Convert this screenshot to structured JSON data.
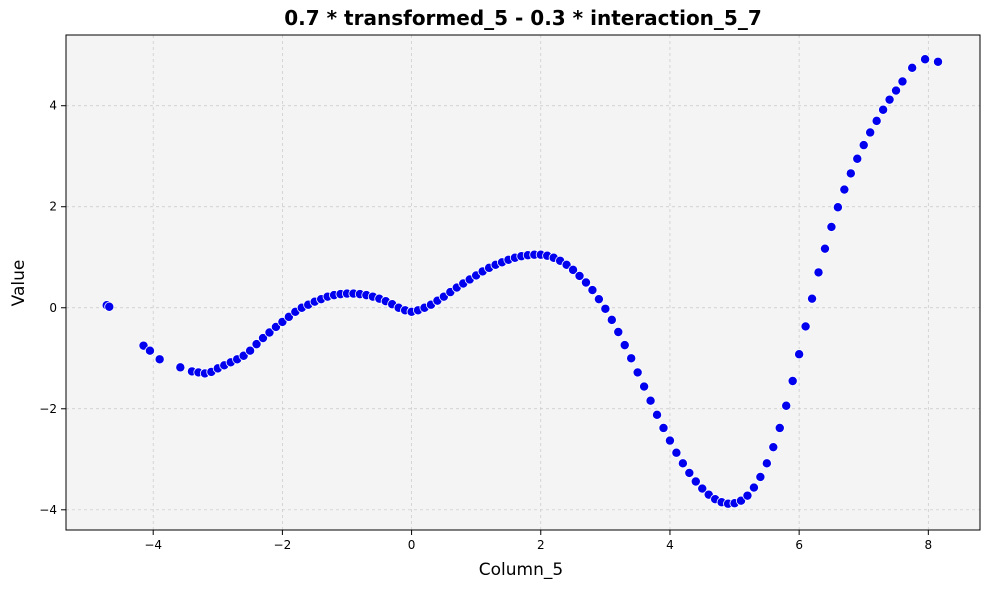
{
  "chart_data": {
    "type": "scatter",
    "title": "0.7 * transformed_5 - 0.3 * interaction_5_7",
    "xlabel": "Column_5",
    "ylabel": "Value",
    "xlim": [
      -5.35,
      8.8
    ],
    "ylim": [
      -4.4,
      5.4
    ],
    "xticks": [
      -4,
      -2,
      0,
      2,
      4,
      6,
      8
    ],
    "yticks": [
      -4,
      -2,
      0,
      2,
      4
    ],
    "grid": true,
    "legend": "none",
    "colors": {
      "point_fill": "#0000ee",
      "point_edge": "#ffffff",
      "plot_background": "#f4f4f4",
      "grid": "#c8c8c8"
    },
    "series": [
      {
        "x": [
          -4.72,
          -4.68,
          -4.15,
          -4.05,
          -3.9,
          -3.58,
          -3.4,
          -3.3,
          -3.2,
          -3.1,
          -3.0,
          -2.9,
          -2.8,
          -2.7,
          -2.6,
          -2.5,
          -2.4,
          -2.3,
          -2.2,
          -2.1,
          -2.0,
          -1.9,
          -1.8,
          -1.7,
          -1.6,
          -1.5,
          -1.4,
          -1.3,
          -1.2,
          -1.1,
          -1.0,
          -0.9,
          -0.8,
          -0.7,
          -0.6,
          -0.5,
          -0.4,
          -0.3,
          -0.2,
          -0.1,
          0.0,
          0.1,
          0.2,
          0.3,
          0.4,
          0.5,
          0.6,
          0.7,
          0.8,
          0.9,
          1.0,
          1.1,
          1.2,
          1.3,
          1.4,
          1.5,
          1.6,
          1.7,
          1.8,
          1.9,
          2.0,
          2.1,
          2.2,
          2.3,
          2.4,
          2.5,
          2.6,
          2.7,
          2.8,
          2.9,
          3.0,
          3.1,
          3.2,
          3.3,
          3.4,
          3.5,
          3.6,
          3.7,
          3.8,
          3.9,
          4.0,
          4.1,
          4.2,
          4.3,
          4.4,
          4.5,
          4.6,
          4.7,
          4.8,
          4.9,
          5.0,
          5.1,
          5.2,
          5.3,
          5.4,
          5.5,
          5.6,
          5.7,
          5.8,
          5.9,
          6.0,
          6.1,
          6.2,
          6.3,
          6.4,
          6.5,
          6.6,
          6.7,
          6.8,
          6.9,
          7.0,
          7.1,
          7.2,
          7.3,
          7.4,
          7.5,
          7.6,
          7.75,
          7.95,
          8.15
        ],
        "y": [
          0.05,
          0.02,
          -0.75,
          -0.85,
          -1.02,
          -1.18,
          -1.26,
          -1.28,
          -1.3,
          -1.27,
          -1.2,
          -1.14,
          -1.08,
          -1.02,
          -0.95,
          -0.85,
          -0.72,
          -0.6,
          -0.49,
          -0.38,
          -0.28,
          -0.18,
          -0.08,
          0.0,
          0.06,
          0.12,
          0.17,
          0.22,
          0.25,
          0.27,
          0.28,
          0.28,
          0.27,
          0.25,
          0.22,
          0.18,
          0.13,
          0.07,
          0.0,
          -0.05,
          -0.08,
          -0.05,
          0.0,
          0.06,
          0.14,
          0.22,
          0.31,
          0.4,
          0.48,
          0.56,
          0.64,
          0.72,
          0.79,
          0.85,
          0.9,
          0.95,
          0.99,
          1.02,
          1.04,
          1.05,
          1.05,
          1.03,
          0.99,
          0.93,
          0.85,
          0.75,
          0.63,
          0.5,
          0.35,
          0.17,
          -0.02,
          -0.24,
          -0.48,
          -0.74,
          -1.0,
          -1.28,
          -1.56,
          -1.84,
          -2.12,
          -2.38,
          -2.63,
          -2.87,
          -3.08,
          -3.27,
          -3.44,
          -3.58,
          -3.7,
          -3.79,
          -3.85,
          -3.88,
          -3.87,
          -3.82,
          -3.72,
          -3.56,
          -3.35,
          -3.08,
          -2.76,
          -2.38,
          -1.94,
          -1.45,
          -0.92,
          -0.37,
          0.18,
          0.7,
          1.17,
          1.6,
          1.99,
          2.34,
          2.66,
          2.95,
          3.22,
          3.47,
          3.7,
          3.92,
          4.12,
          4.3,
          4.48,
          4.75,
          4.92,
          4.87
        ]
      }
    ]
  }
}
